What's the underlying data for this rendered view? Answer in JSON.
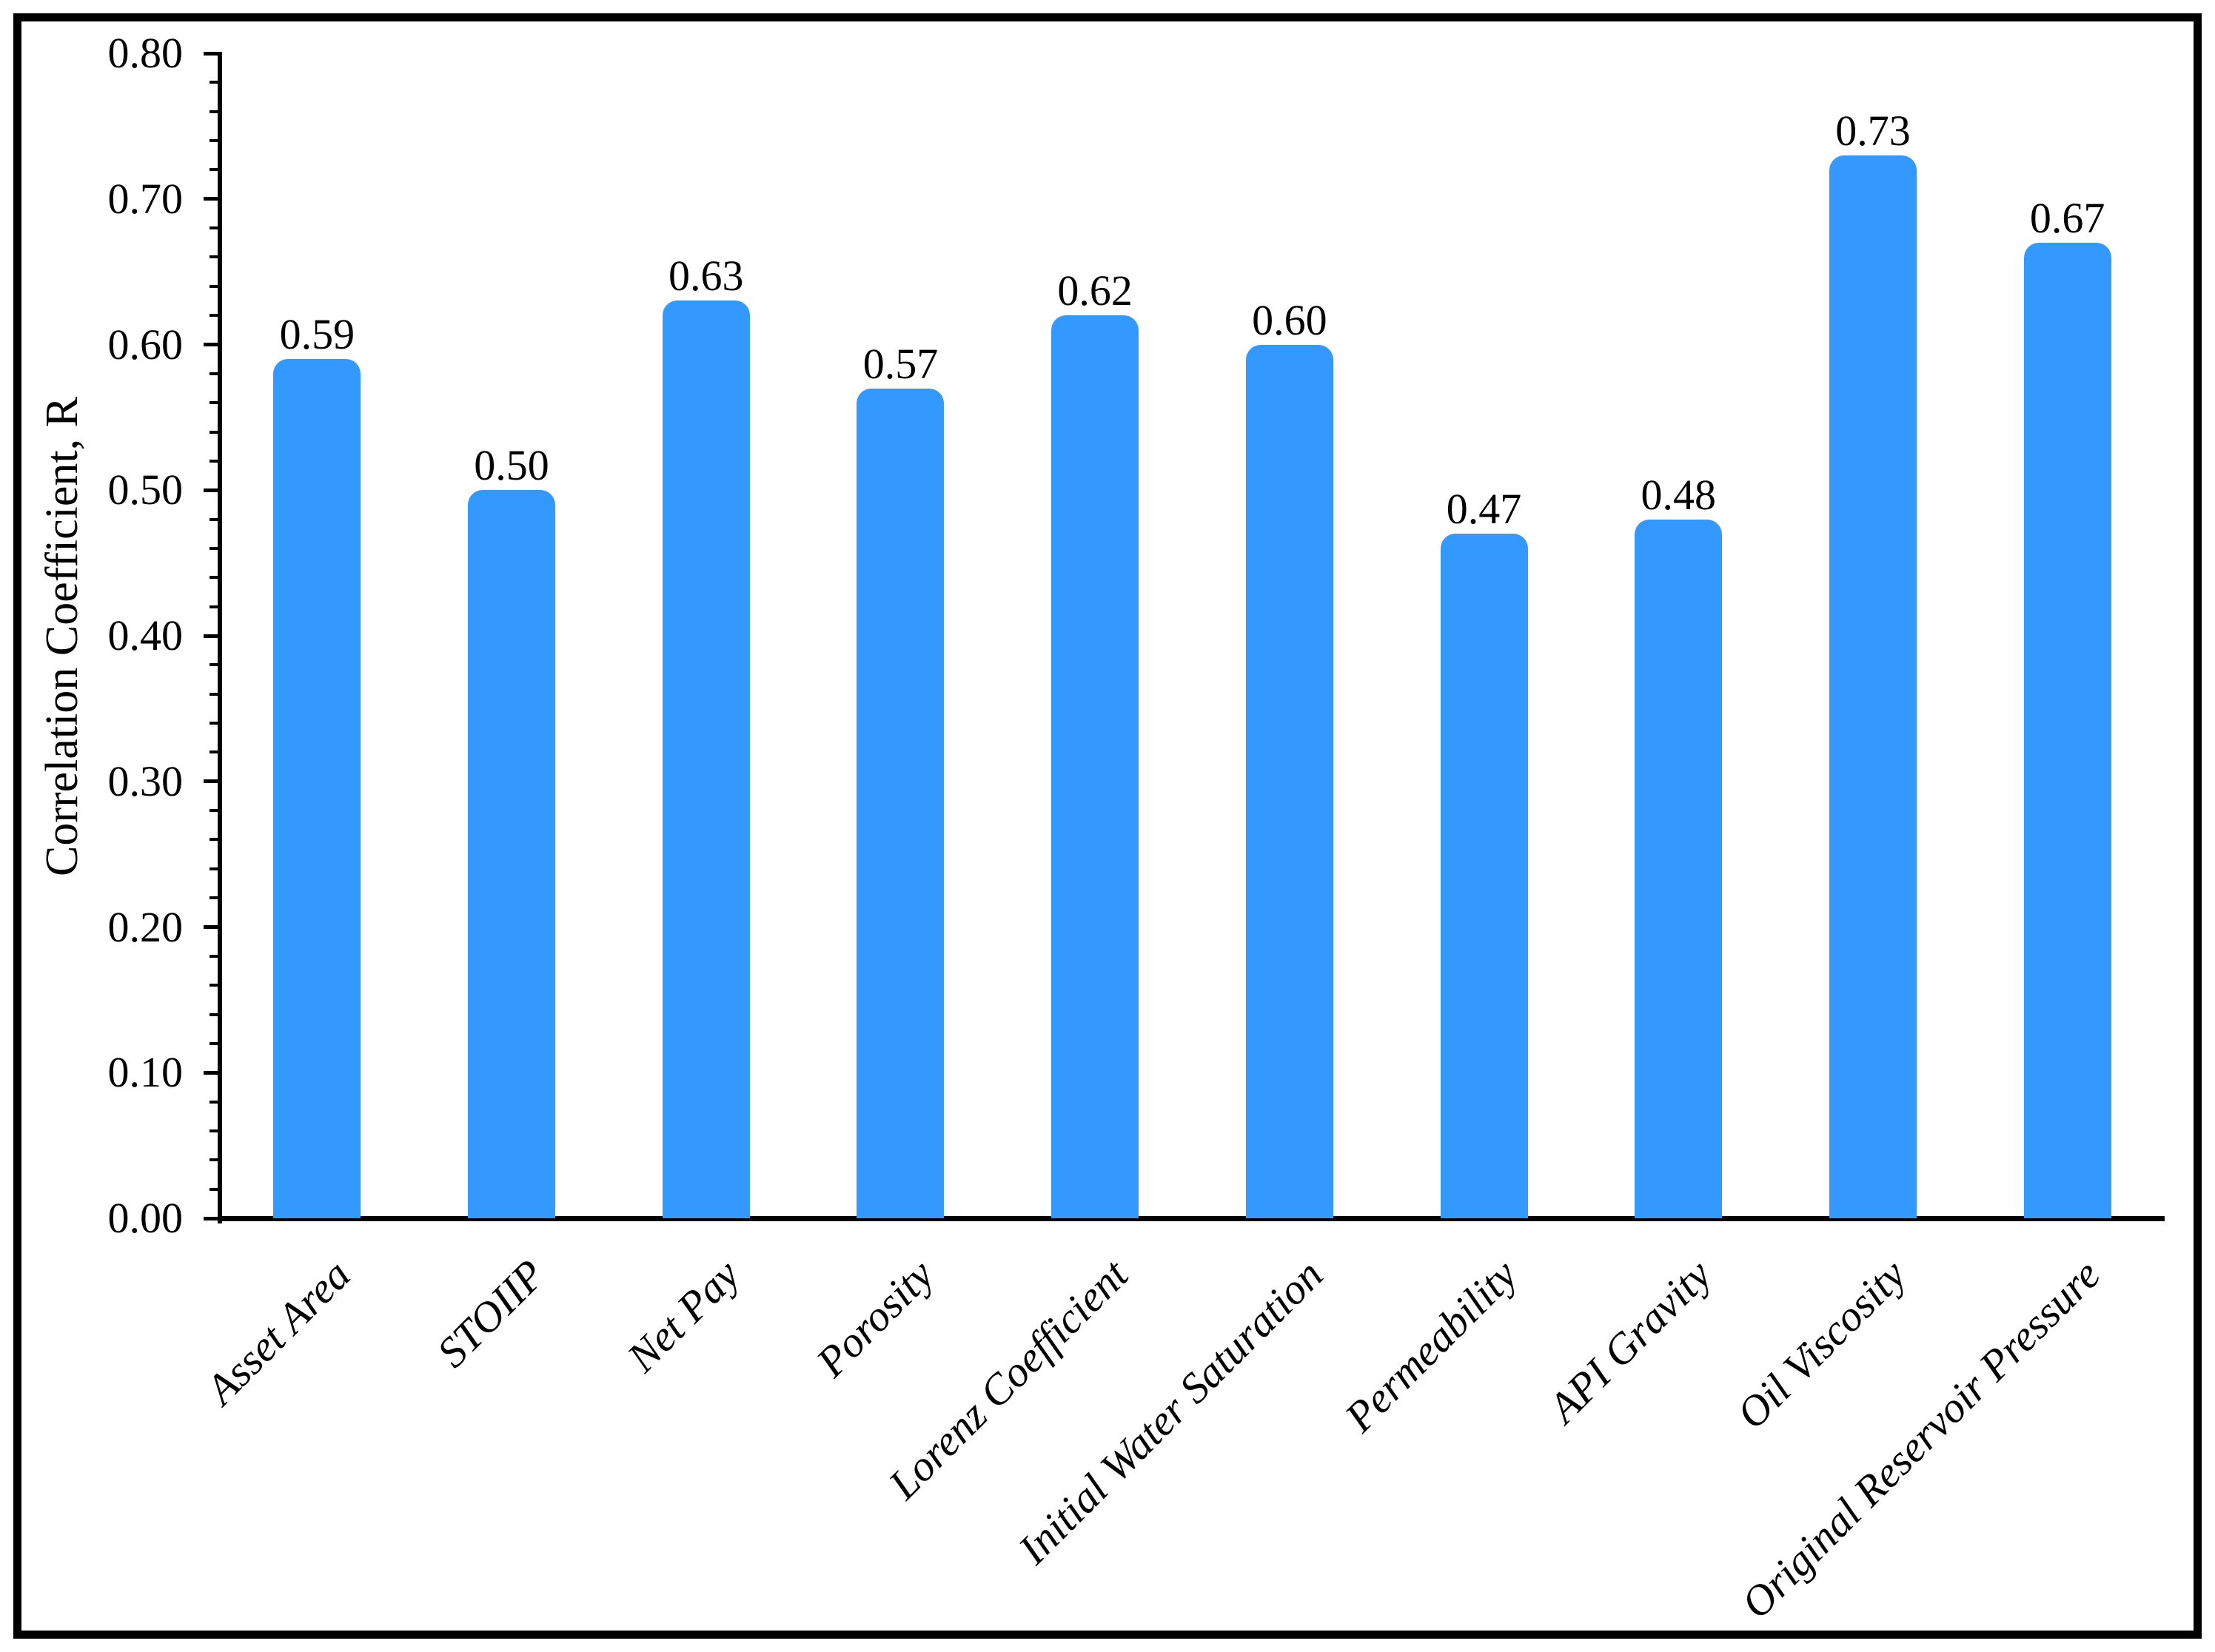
{
  "chart_data": {
    "type": "bar",
    "title": "",
    "xlabel": "",
    "ylabel": "Correlation Coefficient, R",
    "categories": [
      "Asset Area",
      "STOIIP",
      "Net Pay",
      "Porosity",
      "Lorenz Coefficient",
      "Initial Water Saturation",
      "Permeability",
      "API Gravity",
      "Oil Viscosity",
      "Original Reservoir Pressure"
    ],
    "values": [
      0.59,
      0.5,
      0.63,
      0.57,
      0.62,
      0.6,
      0.47,
      0.48,
      0.73,
      0.67
    ],
    "value_labels": [
      "0.59",
      "0.50",
      "0.63",
      "0.57",
      "0.62",
      "0.60",
      "0.47",
      "0.48",
      "0.73",
      "0.67"
    ],
    "ylim": [
      0.0,
      0.8
    ],
    "ytick_step": 0.1,
    "ytick_labels": [
      "0.00",
      "0.10",
      "0.20",
      "0.30",
      "0.40",
      "0.50",
      "0.60",
      "0.70",
      "0.80"
    ],
    "minor_tick_step": 0.02,
    "grid": false,
    "legend": null,
    "bar_color": "#3399FF",
    "axis_color": "#000000",
    "frame_color": "#000000",
    "x_label_rotation_deg": 45,
    "x_label_style": "italic"
  }
}
